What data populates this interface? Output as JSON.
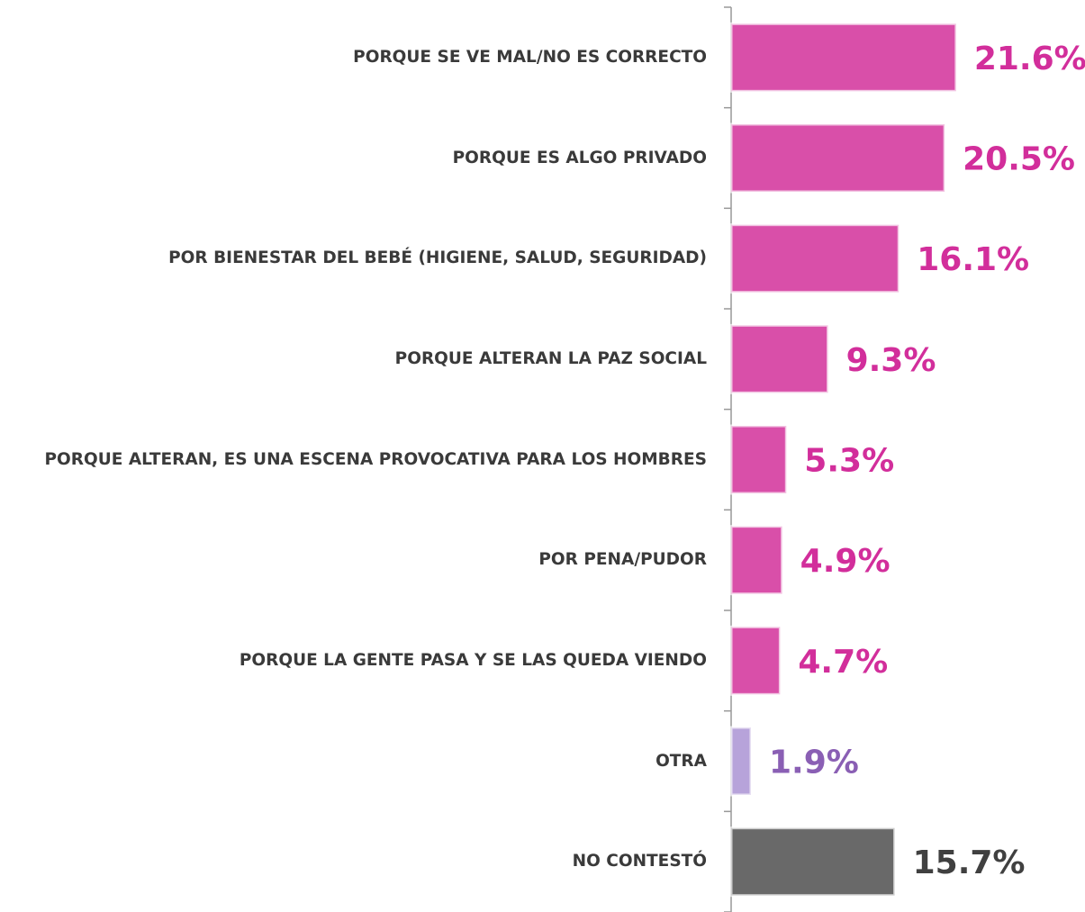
{
  "chart_data": {
    "type": "barh",
    "categories": [
      "PORQUE SE VE MAL/NO ES CORRECTO",
      "PORQUE ES ALGO PRIVADO",
      "POR BIENESTAR DEL BEBÉ (HIGIENE, SALUD, SEGURIDAD)",
      "PORQUE ALTERAN LA PAZ SOCIAL",
      "PORQUE ALTERAN, ES UNA ESCENA PROVOCATIVA PARA LOS HOMBRES",
      "POR PENA/PUDOR",
      "PORQUE LA GENTE PASA Y SE LAS QUEDA VIENDO",
      "OTRA",
      "NO CONTESTÓ"
    ],
    "values": [
      21.6,
      20.5,
      16.1,
      9.3,
      5.3,
      4.9,
      4.7,
      1.9,
      15.7
    ],
    "value_labels": [
      "21.6%",
      "20.5%",
      "16.1%",
      "9.3%",
      "5.3%",
      "4.9%",
      "4.7%",
      "1.9%",
      "15.7%"
    ],
    "colors": [
      "#d94fa9",
      "#d94fa9",
      "#d94fa9",
      "#d94fa9",
      "#d94fa9",
      "#d94fa9",
      "#d94fa9",
      "#b7a3da",
      "#696969"
    ],
    "label_colors": [
      "#d22e9b",
      "#d22e9b",
      "#d22e9b",
      "#d22e9b",
      "#d22e9b",
      "#d22e9b",
      "#d22e9b",
      "#8a5fb4",
      "#404040"
    ],
    "xlim": [
      0,
      30
    ]
  }
}
